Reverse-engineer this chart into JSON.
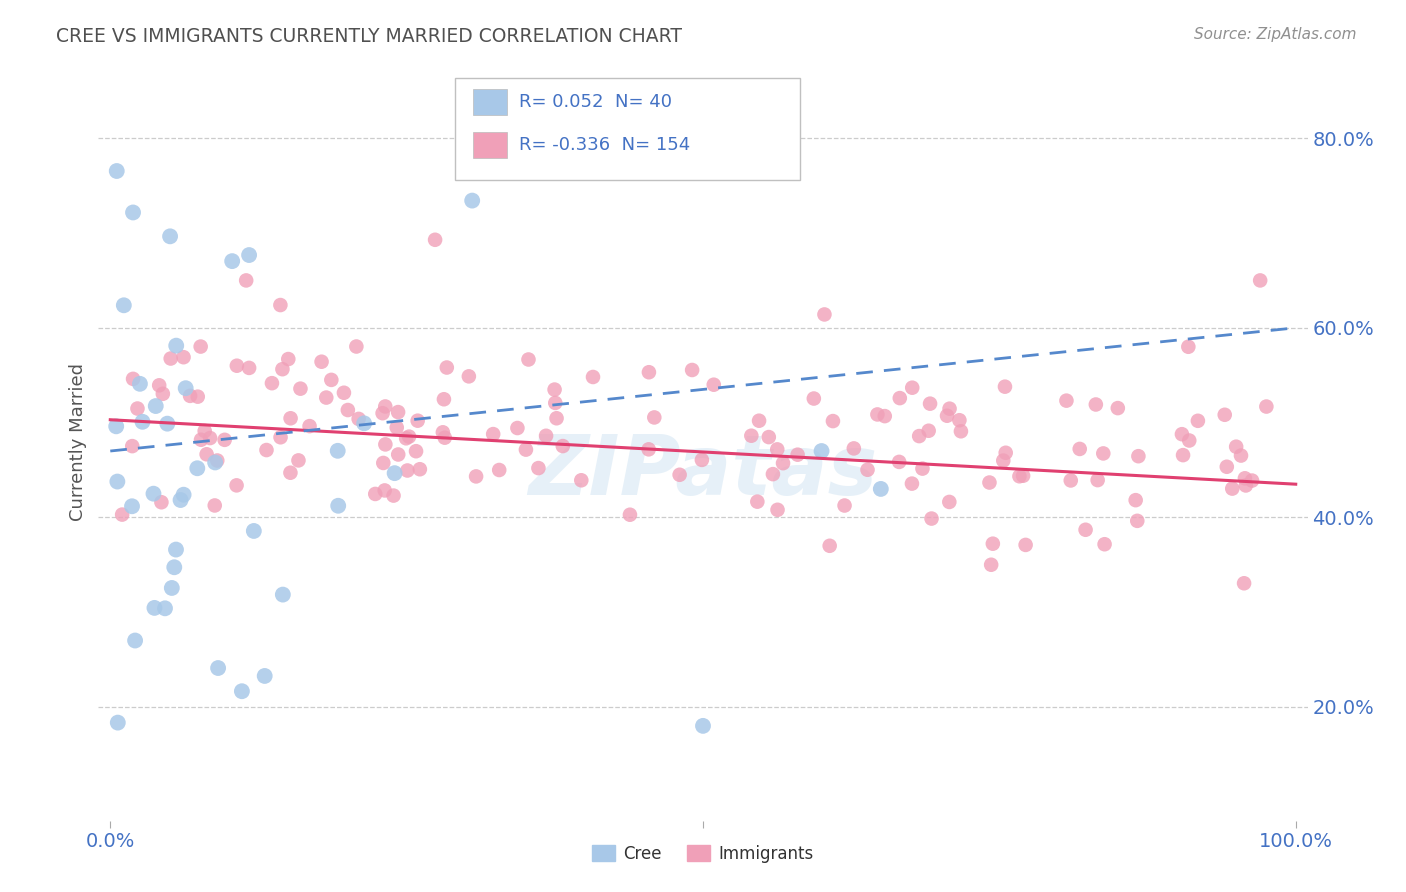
{
  "title": "CREE VS IMMIGRANTS CURRENTLY MARRIED CORRELATION CHART",
  "source_text": "Source: ZipAtlas.com",
  "ylabel": "Currently Married",
  "cree_R": 0.052,
  "cree_N": 40,
  "immigrants_R": -0.336,
  "immigrants_N": 154,
  "cree_color": "#a8c8e8",
  "immigrants_color": "#f0a0b8",
  "cree_line_color": "#5588cc",
  "immigrants_line_color": "#e04070",
  "legend_text_color": "#4472c4",
  "title_color": "#505050",
  "source_color": "#909090",
  "background_color": "#ffffff",
  "grid_color": "#cccccc",
  "watermark_text": "ZIPatas",
  "xmin": 0.0,
  "xmax": 1.0,
  "ymin": 0.08,
  "ymax": 0.88,
  "ytick_vals": [
    0.2,
    0.4,
    0.6,
    0.8
  ],
  "ytick_labels": [
    "20.0%",
    "40.0%",
    "60.0%",
    "80.0%"
  ]
}
